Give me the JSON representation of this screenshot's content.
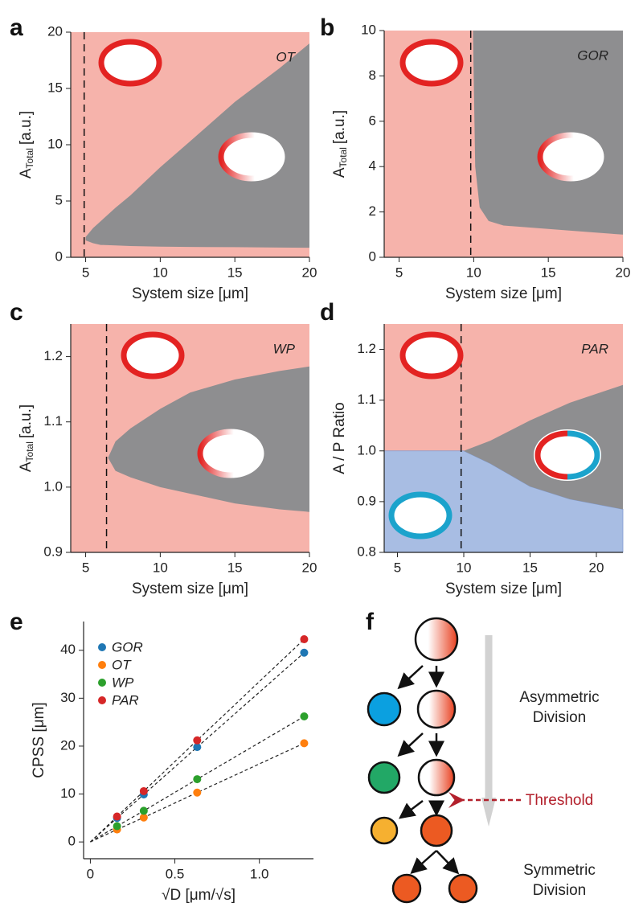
{
  "chart_data": [
    {
      "type": "phase",
      "letter": "a",
      "label": "OT",
      "xlabel": "System size [μm]",
      "ylabel": "A",
      "ylabel_sub": "Total",
      "ylabel_unit": "[a.u.]",
      "xlim": [
        4,
        20
      ],
      "xticks": [
        5,
        10,
        15,
        20
      ],
      "ylim": [
        0,
        20
      ],
      "yticks": [
        0,
        5,
        10,
        15,
        20
      ],
      "threshold": 4.9,
      "region_x": [
        5,
        5.5,
        6,
        7,
        8,
        10,
        12,
        15,
        18,
        20
      ],
      "region_upper": [
        1.8,
        2.6,
        3.2,
        4.4,
        5.5,
        8,
        10.3,
        13.8,
        16.8,
        19
      ],
      "region_lower": [
        1.5,
        1.25,
        1.1,
        1.05,
        1,
        0.95,
        0.92,
        0.9,
        0.87,
        0.85
      ],
      "background": "#f6b3ab",
      "region_color": "#8e8e90"
    },
    {
      "type": "phase",
      "letter": "b",
      "label": "GOR",
      "xlabel": "System size [μm]",
      "ylabel": "A",
      "ylabel_sub": "Total",
      "ylabel_unit": "[a.u.]",
      "xlim": [
        4,
        20
      ],
      "xticks": [
        5,
        10,
        15,
        20
      ],
      "ylim": [
        0,
        10
      ],
      "yticks": [
        0,
        2,
        4,
        6,
        8,
        10
      ],
      "threshold": 9.8,
      "region_x": [
        9.95,
        10.1,
        10.4,
        11,
        12,
        15,
        18,
        20
      ],
      "region_upper": [
        10,
        10,
        10,
        10,
        10,
        10,
        10,
        10
      ],
      "region_lower": [
        10,
        4,
        2.2,
        1.6,
        1.4,
        1.25,
        1.1,
        1
      ],
      "background": "#f6b3ab",
      "region_color": "#8e8e90"
    },
    {
      "type": "phase",
      "letter": "c",
      "label": "WP",
      "xlabel": "System size [μm]",
      "ylabel": "A",
      "ylabel_sub": "Total",
      "ylabel_unit": "[a.u.]",
      "xlim": [
        4,
        20
      ],
      "xticks": [
        5,
        10,
        15,
        20
      ],
      "ylim": [
        0.9,
        1.25
      ],
      "yticks": [
        0.9,
        {
          "value": 1,
          "label": "1.0"
        },
        1.1,
        1.2
      ],
      "threshold": 6.4,
      "region_x": [
        6.5,
        7,
        8,
        10,
        12,
        15,
        18,
        20
      ],
      "region_upper": [
        1.045,
        1.07,
        1.09,
        1.12,
        1.145,
        1.165,
        1.178,
        1.185
      ],
      "region_lower": [
        1.045,
        1.025,
        1.015,
        1.0,
        0.99,
        0.975,
        0.966,
        0.962
      ],
      "background": "#f6b3ab",
      "region_color": "#8e8e90"
    },
    {
      "type": "phase",
      "letter": "d",
      "label": "PAR",
      "xlabel": "System size [μm]",
      "ylabel": "A / P Ratio",
      "xlim": [
        4,
        22
      ],
      "xticks": [
        5,
        10,
        15,
        20
      ],
      "ylim": [
        0.8,
        1.25
      ],
      "yticks": [
        0.8,
        0.9,
        {
          "value": 1,
          "label": "1.0"
        },
        1.1,
        1.2
      ],
      "threshold": 9.8,
      "region_x": [
        10,
        12,
        15,
        18,
        22
      ],
      "region_upper": [
        1.0,
        1.02,
        1.06,
        1.095,
        1.13
      ],
      "region_lower": [
        1.0,
        0.975,
        0.93,
        0.905,
        0.885
      ],
      "split": 1,
      "split_color": "#a8bde3",
      "background": "#f6b3ab",
      "region_color": "#8e8e90"
    },
    {
      "type": "scatter",
      "letter": "e",
      "xlabel": "√D [μm/√s]",
      "ylabel": "CPSS [μm]",
      "xlim": [
        -0.04,
        1.32
      ],
      "xticks": [
        0,
        0.5,
        {
          "value": 1,
          "label": "1.0"
        }
      ],
      "ylim": [
        -3.5,
        46
      ],
      "yticks": [
        0,
        10,
        20,
        30,
        40
      ],
      "x": [
        0.158,
        0.316,
        0.632,
        1.265
      ],
      "series": [
        {
          "name": "GOR",
          "color": "#1f77b4",
          "values": [
            5,
            9.9,
            19.8,
            39.5
          ]
        },
        {
          "name": "OT",
          "color": "#ff7f0e",
          "values": [
            2.6,
            5.1,
            10.3,
            20.6
          ]
        },
        {
          "name": "WP",
          "color": "#2ca02c",
          "values": [
            3.3,
            6.5,
            13.1,
            26.2
          ]
        },
        {
          "name": "PAR",
          "color": "#d62728",
          "values": [
            5.3,
            10.6,
            21.2,
            42.3
          ]
        }
      ]
    }
  ],
  "diagram": {
    "letter": "f",
    "asymmetric": [
      "Asymmetric",
      "Division"
    ],
    "threshold": "Threshold",
    "symmetric": [
      "Symmetric",
      "Division"
    ]
  }
}
